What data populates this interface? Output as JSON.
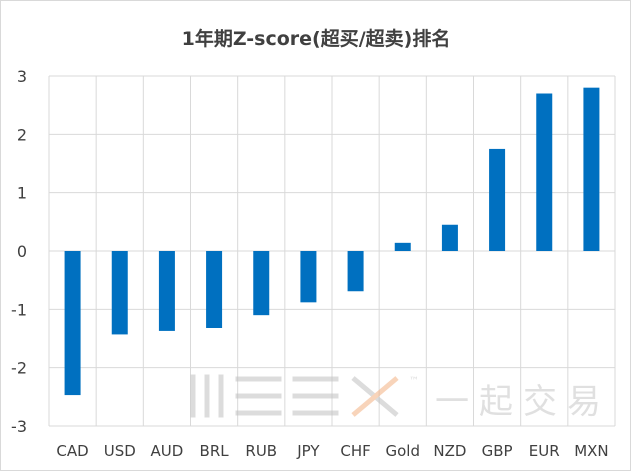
{
  "chart_data": {
    "type": "bar",
    "title": "1年期Z-score(超买/超卖)排名",
    "xlabel": "",
    "ylabel": "",
    "categories": [
      "CAD",
      "USD",
      "AUD",
      "BRL",
      "RUB",
      "JPY",
      "CHF",
      "Gold",
      "NZD",
      "GBP",
      "EUR",
      "MXN"
    ],
    "values": [
      -2.47,
      -1.43,
      -1.37,
      -1.32,
      -1.1,
      -0.88,
      -0.69,
      0.14,
      0.45,
      1.75,
      2.7,
      2.8
    ],
    "ylim": [
      -3,
      3
    ],
    "yticks": [
      "3",
      "2",
      "1",
      "0",
      "-1",
      "-2",
      "-3"
    ],
    "grid": true,
    "bar_color": "#0070C0"
  },
  "watermark": {
    "text": "川三三乂™一起交易",
    "color": "#c8c8c8"
  }
}
